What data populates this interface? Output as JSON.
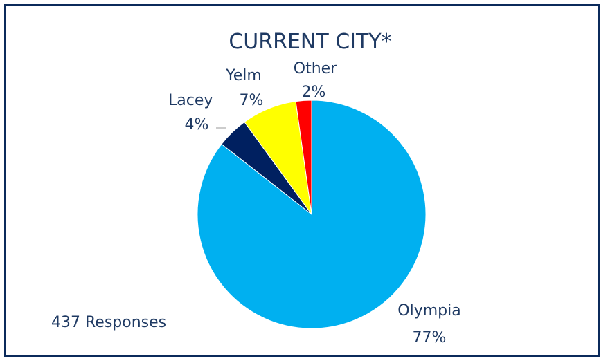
{
  "chart_data": {
    "type": "pie",
    "title": "CURRENT CITY*",
    "annotation": "437 Responses",
    "slices": [
      {
        "category": "Olympia",
        "label": "77%",
        "value": 77,
        "color": "#00b0f0"
      },
      {
        "category": "Lacey",
        "label": "4%",
        "value": 4,
        "color": "#002060"
      },
      {
        "category": "Yelm",
        "label": "7%",
        "value": 7,
        "color": "#ffff00"
      },
      {
        "category": "Other",
        "label": "2%",
        "value": 2,
        "color": "#ff0000"
      }
    ]
  }
}
